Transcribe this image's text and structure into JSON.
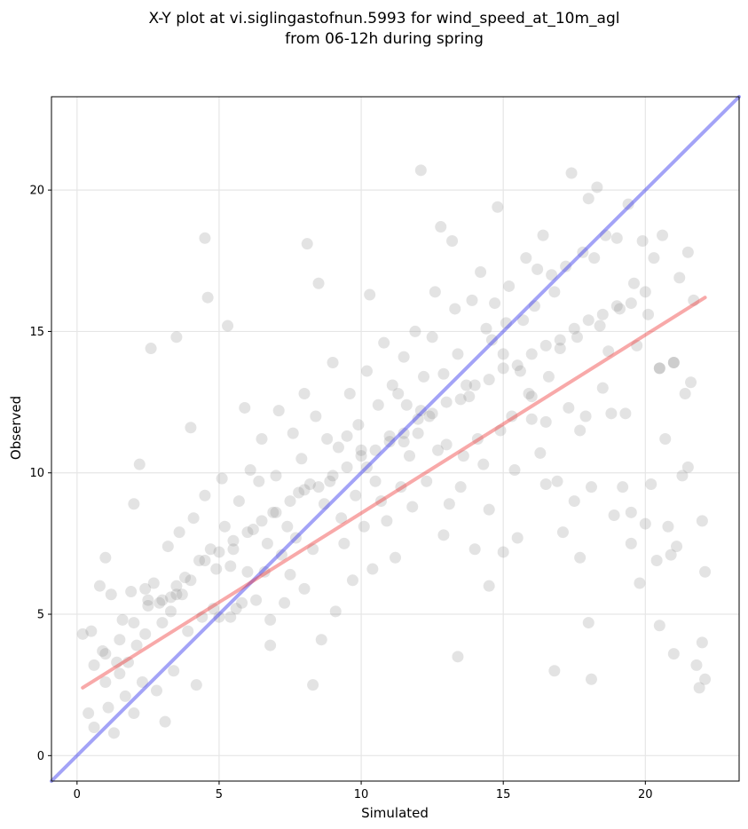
{
  "chart_data": {
    "type": "scatter",
    "title_lines": [
      "X-Y plot at vi.siglingastofnun.5993 for wind_speed_at_10m_agl",
      "from 06-12h during spring"
    ],
    "xlabel": "Simulated",
    "ylabel": "Observed",
    "xlim": [
      -0.9,
      23.3
    ],
    "ylim": [
      -0.9,
      23.3
    ],
    "x_ticks": [
      0,
      5,
      10,
      15,
      20
    ],
    "y_ticks": [
      0,
      5,
      10,
      15,
      20
    ],
    "x_tick_labels": [
      "0",
      "5",
      "10",
      "15",
      "20"
    ],
    "y_tick_labels": [
      "0",
      "5",
      "10",
      "15",
      "20"
    ],
    "grid": true,
    "point_color": "#808080",
    "identity_line": {
      "color": "#3333ee",
      "x": [
        -0.9,
        23.3
      ],
      "y": [
        -0.9,
        23.3
      ]
    },
    "fit_line": {
      "color": "#ee3333",
      "x": [
        0.2,
        22.1
      ],
      "y": [
        2.4,
        16.2
      ]
    },
    "points_x": [
      0.2,
      0.4,
      0.5,
      0.6,
      0.6,
      0.8,
      0.9,
      1.0,
      1.0,
      1.1,
      1.2,
      1.3,
      1.4,
      1.5,
      1.6,
      1.7,
      1.8,
      1.9,
      2.0,
      2.1,
      2.2,
      2.3,
      2.4,
      2.5,
      2.6,
      2.7,
      2.8,
      2.9,
      3.0,
      3.1,
      3.2,
      3.3,
      3.4,
      3.5,
      3.6,
      3.7,
      3.8,
      3.9,
      4.0,
      4.1,
      4.2,
      4.3,
      4.4,
      4.5,
      4.6,
      4.7,
      4.8,
      4.9,
      5.0,
      5.1,
      5.2,
      5.3,
      5.4,
      5.5,
      5.6,
      5.7,
      5.8,
      5.9,
      6.0,
      6.1,
      6.2,
      6.3,
      6.4,
      6.5,
      6.6,
      6.7,
      6.8,
      6.9,
      7.0,
      7.1,
      7.2,
      7.3,
      7.4,
      7.5,
      7.6,
      7.7,
      7.8,
      7.9,
      8.0,
      8.1,
      8.2,
      8.3,
      8.4,
      8.5,
      8.6,
      8.7,
      8.8,
      8.9,
      9.0,
      9.1,
      9.2,
      9.3,
      9.4,
      9.5,
      9.6,
      9.7,
      9.8,
      9.9,
      10.0,
      10.1,
      10.2,
      10.3,
      10.4,
      10.5,
      10.6,
      10.7,
      10.8,
      10.9,
      11.0,
      11.1,
      11.2,
      11.3,
      11.4,
      11.5,
      11.6,
      11.7,
      11.8,
      11.9,
      12.0,
      12.1,
      12.2,
      12.3,
      12.4,
      12.5,
      12.6,
      12.7,
      12.8,
      12.9,
      13.0,
      13.1,
      13.2,
      13.3,
      13.4,
      13.5,
      13.6,
      13.7,
      13.8,
      13.9,
      14.0,
      14.1,
      14.2,
      14.3,
      14.4,
      14.5,
      14.6,
      14.7,
      14.8,
      14.9,
      15.0,
      15.1,
      15.2,
      15.3,
      15.4,
      15.5,
      15.6,
      15.7,
      15.8,
      15.9,
      16.0,
      16.1,
      16.2,
      16.3,
      16.4,
      16.5,
      16.6,
      16.7,
      16.8,
      16.9,
      17.0,
      17.1,
      17.2,
      17.3,
      17.4,
      17.5,
      17.6,
      17.7,
      17.8,
      17.9,
      18.0,
      18.1,
      18.2,
      18.3,
      18.4,
      18.5,
      18.6,
      18.7,
      18.8,
      18.9,
      19.0,
      19.1,
      19.2,
      19.3,
      19.4,
      19.5,
      19.6,
      19.7,
      19.8,
      19.9,
      20.0,
      20.1,
      20.2,
      20.3,
      20.4,
      20.5,
      20.6,
      20.7,
      20.8,
      20.9,
      21.0,
      21.1,
      21.2,
      21.3,
      21.4,
      21.5,
      21.6,
      21.7,
      21.8,
      21.9,
      22.0,
      22.1,
      1.0,
      1.5,
      2.0,
      2.5,
      3.0,
      3.5,
      4.0,
      4.5,
      5.0,
      5.5,
      6.0,
      6.5,
      7.0,
      7.5,
      8.0,
      8.5,
      9.0,
      9.5,
      10.0,
      10.5,
      11.0,
      11.5,
      12.0,
      12.5,
      13.0,
      13.5,
      14.0,
      14.5,
      15.0,
      15.5,
      16.0,
      16.5,
      17.0,
      17.5,
      18.0,
      18.5,
      19.0,
      19.5,
      20.0,
      20.5,
      21.0,
      21.5,
      22.0,
      12.1,
      8.0,
      17.7,
      16.5,
      18.0,
      2.4,
      3.5,
      19.5,
      2.0,
      15.0,
      4.5,
      12.9,
      10.2,
      16.0,
      18.1,
      8.3,
      13.4,
      14.5,
      5.4,
      6.8,
      3.3,
      11.5,
      20.5,
      21.0,
      22.1,
      16.8,
      17.7,
      10.1,
      12.4,
      13.6
    ],
    "points_y": [
      4.3,
      1.5,
      4.4,
      3.2,
      1.0,
      6.0,
      3.7,
      2.6,
      7.0,
      1.7,
      5.7,
      0.8,
      3.3,
      2.9,
      4.8,
      2.1,
      3.3,
      5.8,
      1.5,
      3.9,
      10.3,
      2.6,
      4.3,
      5.5,
      14.4,
      6.1,
      2.3,
      5.4,
      4.7,
      1.2,
      7.4,
      5.1,
      3.0,
      14.8,
      7.9,
      5.7,
      6.3,
      4.4,
      11.6,
      8.4,
      2.5,
      6.9,
      4.9,
      9.2,
      16.2,
      7.3,
      5.2,
      6.6,
      4.9,
      9.8,
      8.1,
      15.2,
      6.7,
      7.3,
      5.2,
      9.0,
      5.4,
      12.3,
      6.5,
      10.1,
      8.0,
      5.5,
      9.7,
      11.2,
      6.5,
      7.5,
      3.9,
      8.6,
      9.9,
      12.2,
      7.1,
      5.4,
      8.1,
      6.4,
      11.4,
      7.7,
      9.3,
      10.5,
      5.9,
      18.1,
      9.6,
      7.3,
      12.0,
      16.7,
      4.1,
      8.9,
      11.2,
      9.7,
      13.9,
      5.1,
      10.9,
      8.4,
      7.5,
      11.3,
      12.8,
      6.2,
      9.2,
      11.7,
      10.8,
      8.1,
      13.6,
      16.3,
      6.6,
      9.7,
      12.4,
      9.0,
      14.6,
      8.3,
      11.1,
      13.1,
      7.0,
      12.8,
      9.5,
      14.1,
      12.4,
      10.6,
      8.8,
      15.0,
      11.4,
      20.7,
      13.4,
      9.7,
      12.0,
      14.8,
      16.4,
      10.8,
      18.7,
      13.5,
      11.0,
      8.9,
      18.2,
      15.8,
      14.2,
      9.5,
      10.6,
      13.1,
      12.7,
      16.1,
      7.3,
      11.2,
      17.1,
      10.3,
      15.1,
      8.7,
      14.7,
      16.0,
      19.4,
      11.5,
      7.2,
      15.3,
      16.6,
      12.0,
      10.1,
      7.7,
      13.6,
      15.4,
      17.6,
      12.8,
      11.9,
      15.9,
      17.2,
      10.7,
      18.4,
      9.6,
      13.4,
      17.0,
      16.4,
      9.7,
      14.4,
      7.9,
      17.3,
      12.3,
      20.6,
      9.0,
      14.8,
      11.5,
      17.8,
      12.0,
      19.7,
      9.5,
      17.6,
      20.1,
      15.2,
      13.0,
      18.4,
      14.3,
      12.1,
      8.5,
      18.3,
      15.8,
      9.5,
      12.1,
      19.5,
      7.5,
      16.7,
      14.5,
      6.1,
      18.2,
      8.2,
      15.6,
      9.6,
      17.6,
      6.9,
      13.7,
      18.4,
      11.2,
      8.1,
      7.1,
      13.9,
      7.4,
      16.9,
      9.9,
      12.8,
      10.2,
      13.2,
      16.1,
      3.2,
      2.4,
      4.0,
      2.7,
      3.6,
      4.1,
      4.7,
      5.3,
      5.5,
      6.0,
      6.2,
      6.9,
      7.2,
      7.6,
      7.9,
      8.3,
      8.6,
      9.0,
      9.4,
      9.5,
      9.9,
      10.2,
      10.6,
      10.8,
      11.3,
      11.4,
      11.9,
      12.1,
      12.5,
      12.6,
      13.1,
      13.3,
      13.7,
      13.8,
      14.2,
      14.5,
      14.7,
      15.1,
      15.4,
      15.6,
      15.9,
      16.0,
      16.4,
      13.7,
      13.9,
      17.8,
      8.3,
      12.2,
      12.8,
      7.0,
      11.8,
      4.7,
      5.9,
      5.7,
      8.6,
      8.9,
      14.2,
      18.3,
      7.8,
      10.2,
      12.7,
      2.7,
      2.5,
      3.5,
      6.0,
      4.9,
      4.8,
      5.6,
      11.1,
      4.6,
      3.6,
      6.5,
      3.0
    ]
  }
}
